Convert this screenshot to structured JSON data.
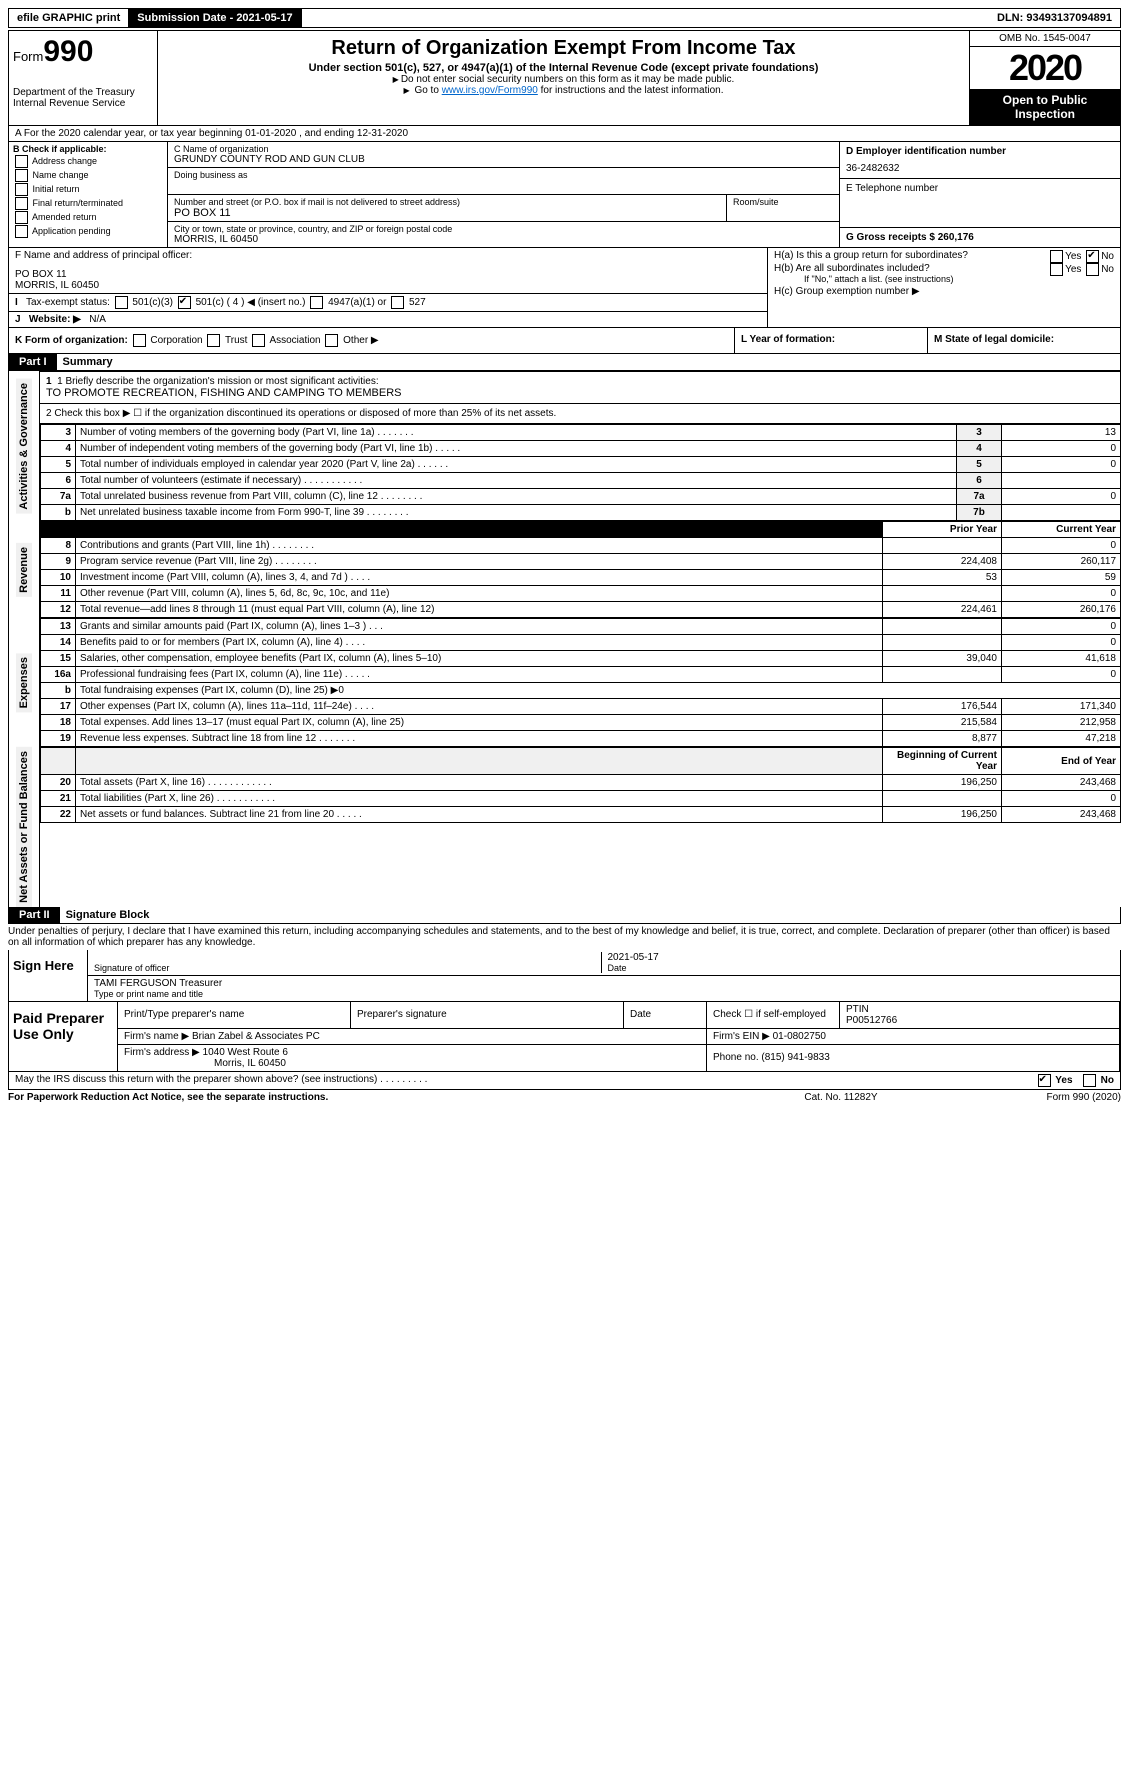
{
  "topbar": {
    "efile": "efile GRAPHIC print",
    "submission_label": "Submission Date - 2021-05-17",
    "dln": "DLN: 93493137094891"
  },
  "header": {
    "form_label": "Form",
    "form_number": "990",
    "dept": "Department of the Treasury",
    "irs": "Internal Revenue Service",
    "title": "Return of Organization Exempt From Income Tax",
    "subtitle": "Under section 501(c), 527, or 4947(a)(1) of the Internal Revenue Code (except private foundations)",
    "note1": "Do not enter social security numbers on this form as it may be made public.",
    "note2_pre": "Go to ",
    "note2_link": "www.irs.gov/Form990",
    "note2_post": " for instructions and the latest information.",
    "omb": "OMB No. 1545-0047",
    "year": "2020",
    "open_public": "Open to Public Inspection"
  },
  "row_a": "A For the 2020 calendar year, or tax year beginning 01-01-2020     , and ending 12-31-2020",
  "col_b": {
    "label": "B Check if applicable:",
    "items": [
      "Address change",
      "Name change",
      "Initial return",
      "Final return/terminated",
      "Amended return",
      "Application pending"
    ]
  },
  "col_c": {
    "name_label": "C Name of organization",
    "name_value": "GRUNDY COUNTY ROD AND GUN CLUB",
    "dba_label": "Doing business as",
    "addr_label": "Number and street (or P.O. box if mail is not delivered to street address)",
    "room_label": "Room/suite",
    "addr_value": "PO BOX 11",
    "city_label": "City or town, state or province, country, and ZIP or foreign postal code",
    "city_value": "MORRIS, IL  60450",
    "officer_label": "F  Name and address of principal officer:",
    "officer_addr1": "PO BOX 11",
    "officer_addr2": "MORRIS, IL  60450"
  },
  "col_d": {
    "ein_label": "D Employer identification number",
    "ein_value": "36-2482632",
    "phone_label": "E Telephone number",
    "gross_label": "G Gross receipts $ 260,176"
  },
  "section_h": {
    "ha": "H(a)  Is this a group return for subordinates?",
    "hb": "H(b)  Are all subordinates included?",
    "hb_note": "If \"No,\" attach a list. (see instructions)",
    "hc": "H(c)  Group exemption number ▶",
    "yes": "Yes",
    "no": "No"
  },
  "row_i": {
    "label": "Tax-exempt status:",
    "opts": [
      "501(c)(3)",
      "501(c) ( 4 ) ◀ (insert no.)",
      "4947(a)(1) or",
      "527"
    ]
  },
  "row_j": {
    "label": "Website: ▶",
    "value": "N/A"
  },
  "row_k": {
    "label": "K Form of organization:",
    "opts": [
      "Corporation",
      "Trust",
      "Association",
      "Other ▶"
    ]
  },
  "row_l": "L Year of formation:",
  "row_m": "M State of legal domicile:",
  "part1": {
    "hdr": "Part I",
    "title": "Summary",
    "q1_label": "1  Briefly describe the organization's mission or most significant activities:",
    "q1_value": "TO PROMOTE RECREATION, FISHING AND CAMPING TO MEMBERS",
    "q2": "2   Check this box ▶ ☐  if the organization discontinued its operations or disposed of more than 25% of its net assets.",
    "vl_gov": "Activities & Governance",
    "vl_rev": "Revenue",
    "vl_exp": "Expenses",
    "vl_net": "Net Assets or Fund Balances"
  },
  "gov_rows": [
    {
      "n": "3",
      "label": "Number of voting members of the governing body (Part VI, line 1a)   .     .     .     .     .     .     .",
      "box": "3",
      "val": "13"
    },
    {
      "n": "4",
      "label": "Number of independent voting members of the governing body (Part VI, line 1b)    .     .     .     .     .",
      "box": "4",
      "val": "0"
    },
    {
      "n": "5",
      "label": "Total number of individuals employed in calendar year 2020 (Part V, line 2a)    .     .     .     .     .     .",
      "box": "5",
      "val": "0"
    },
    {
      "n": "6",
      "label": "Total number of volunteers (estimate if necessary)    .     .     .     .     .     .     .     .     .     .     .",
      "box": "6",
      "val": ""
    },
    {
      "n": "7a",
      "label": "Total unrelated business revenue from Part VIII, column (C), line 12    .     .     .     .     .     .     .     .",
      "box": "7a",
      "val": "0"
    },
    {
      "n": "b",
      "label": "Net unrelated business taxable income from Form 990-T, line 39    .     .     .     .     .     .     .     .",
      "box": "7b",
      "val": ""
    }
  ],
  "twocol_hdr": {
    "prior": "Prior Year",
    "current": "Current Year"
  },
  "rev_rows": [
    {
      "n": "8",
      "label": "Contributions and grants (Part VIII, line 1h)    .     .     .     .     .     .     .     .",
      "p": "",
      "c": "0"
    },
    {
      "n": "9",
      "label": "Program service revenue (Part VIII, line 2g)    .     .     .     .     .     .     .     .",
      "p": "224,408",
      "c": "260,117"
    },
    {
      "n": "10",
      "label": "Investment income (Part VIII, column (A), lines 3, 4, and 7d )    .     .     .     .",
      "p": "53",
      "c": "59"
    },
    {
      "n": "11",
      "label": "Other revenue (Part VIII, column (A), lines 5, 6d, 8c, 9c, 10c, and 11e)",
      "p": "",
      "c": "0"
    },
    {
      "n": "12",
      "label": "Total revenue—add lines 8 through 11 (must equal Part VIII, column (A), line 12)",
      "p": "224,461",
      "c": "260,176"
    }
  ],
  "exp_rows": [
    {
      "n": "13",
      "label": "Grants and similar amounts paid (Part IX, column (A), lines 1–3 )    .     .     .",
      "p": "",
      "c": "0"
    },
    {
      "n": "14",
      "label": "Benefits paid to or for members (Part IX, column (A), line 4)    .     .     .     .",
      "p": "",
      "c": "0"
    },
    {
      "n": "15",
      "label": "Salaries, other compensation, employee benefits (Part IX, column (A), lines 5–10)",
      "p": "39,040",
      "c": "41,618"
    },
    {
      "n": "16a",
      "label": "Professional fundraising fees (Part IX, column (A), line 11e)    .     .     .     .     .",
      "p": "",
      "c": "0"
    },
    {
      "n": "b",
      "label": "Total fundraising expenses (Part IX, column (D), line 25) ▶0",
      "p": "—",
      "c": "—"
    },
    {
      "n": "17",
      "label": "Other expenses (Part IX, column (A), lines 11a–11d, 11f–24e)    .     .     .     .",
      "p": "176,544",
      "c": "171,340"
    },
    {
      "n": "18",
      "label": "Total expenses. Add lines 13–17 (must equal Part IX, column (A), line 25)",
      "p": "215,584",
      "c": "212,958"
    },
    {
      "n": "19",
      "label": "Revenue less expenses. Subtract line 18 from line 12    .     .     .     .     .     .     .",
      "p": "8,877",
      "c": "47,218"
    }
  ],
  "net_hdr": {
    "begin": "Beginning of Current Year",
    "end": "End of Year"
  },
  "net_rows": [
    {
      "n": "20",
      "label": "Total assets (Part X, line 16)    .     .     .     .     .     .     .     .     .     .     .     .",
      "p": "196,250",
      "c": "243,468"
    },
    {
      "n": "21",
      "label": "Total liabilities (Part X, line 26)    .     .     .     .     .     .     .     .     .     .     .",
      "p": "",
      "c": "0"
    },
    {
      "n": "22",
      "label": "Net assets or fund balances. Subtract line 21 from line 20    .     .     .     .     .",
      "p": "196,250",
      "c": "243,468"
    }
  ],
  "part2": {
    "hdr": "Part II",
    "title": "Signature Block",
    "penalties": "Under penalties of perjury, I declare that I have examined this return, including accompanying schedules and statements, and to the best of my knowledge and belief, it is true, correct, and complete. Declaration of preparer (other than officer) is based on all information of which preparer has any knowledge."
  },
  "sign": {
    "here": "Sign Here",
    "sig_officer": "Signature of officer",
    "date_val": "2021-05-17",
    "date_lbl": "Date",
    "name_val": "TAMI FERGUSON Treasurer",
    "name_lbl": "Type or print name and title"
  },
  "paid": {
    "label": "Paid Preparer Use Only",
    "h1": "Print/Type preparer's name",
    "h2": "Preparer's signature",
    "h3": "Date",
    "h4_pre": "Check ☐ if self-employed",
    "h5": "PTIN",
    "ptin": "P00512766",
    "firm_name_lbl": "Firm's name     ▶",
    "firm_name": "Brian Zabel & Associates PC",
    "firm_ein_lbl": "Firm's EIN ▶",
    "firm_ein": "01-0802750",
    "firm_addr_lbl": "Firm's address ▶",
    "firm_addr1": "1040 West Route 6",
    "firm_addr2": "Morris, IL  60450",
    "phone_lbl": "Phone no.",
    "phone": "(815) 941-9833"
  },
  "footer": {
    "discuss": "May the IRS discuss this return with the preparer shown above? (see instructions)    .     .     .     .     .     .     .     .     .",
    "yes": "Yes",
    "no": "No",
    "paperwork": "For Paperwork Reduction Act Notice, see the separate instructions.",
    "cat": "Cat. No. 11282Y",
    "form": "Form 990 (2020)"
  }
}
